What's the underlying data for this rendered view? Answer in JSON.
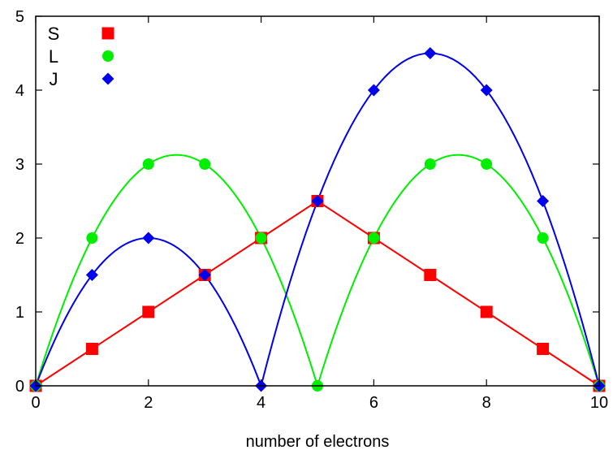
{
  "chart_data": {
    "type": "line",
    "title": "",
    "xlabel": "number of electrons",
    "ylabel": "",
    "xlim": [
      0,
      10
    ],
    "ylim": [
      0,
      5
    ],
    "x_ticks": [
      0,
      2,
      4,
      6,
      8,
      10
    ],
    "y_ticks": [
      0,
      1,
      2,
      3,
      4,
      5
    ],
    "grid": false,
    "legend_position": "top-left",
    "series": [
      {
        "name": "S",
        "color": "#ff0000",
        "marker": "square",
        "curve": "straight",
        "x": [
          0,
          1,
          2,
          3,
          4,
          5,
          6,
          7,
          8,
          9,
          10
        ],
        "values": [
          0,
          0.5,
          1,
          1.5,
          2,
          2.5,
          2,
          1.5,
          1,
          0.5,
          0
        ]
      },
      {
        "name": "L",
        "color": "#00ee00",
        "marker": "circle",
        "curve": "smooth",
        "x": [
          0,
          1,
          2,
          3,
          4,
          5,
          6,
          7,
          8,
          9,
          10
        ],
        "values": [
          0,
          2,
          3,
          3,
          2,
          0,
          2,
          3,
          3,
          2,
          0
        ]
      },
      {
        "name": "J",
        "color": "#0000ee",
        "marker": "diamond",
        "curve": "smooth",
        "x": [
          0,
          1,
          2,
          3,
          4,
          5,
          6,
          7,
          8,
          9,
          10
        ],
        "values": [
          0,
          1.5,
          2,
          1.5,
          0,
          2.5,
          4,
          4.5,
          4,
          2.5,
          0
        ]
      }
    ]
  }
}
